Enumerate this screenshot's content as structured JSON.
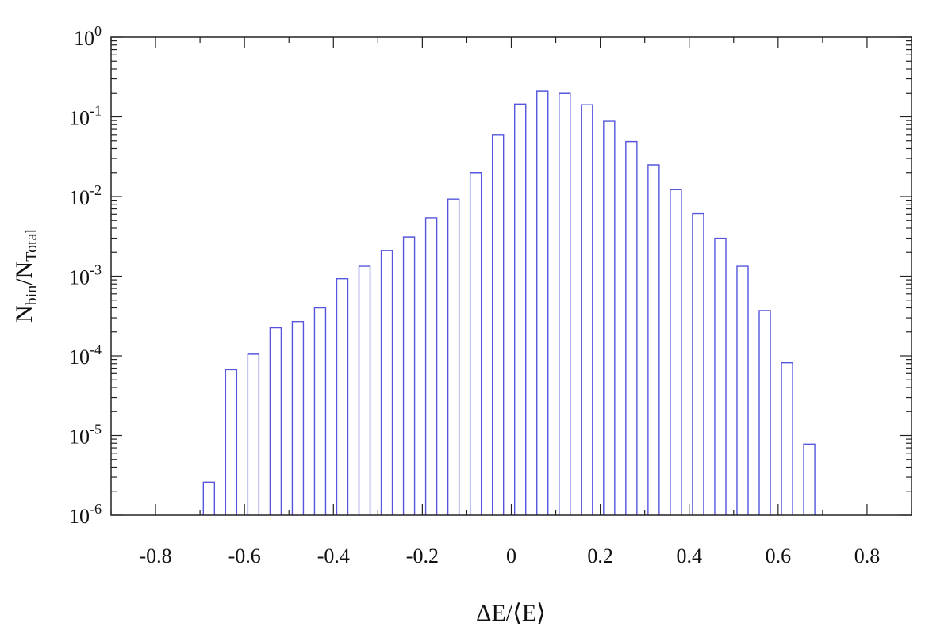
{
  "chart_data": {
    "type": "bar",
    "xlabel": "ΔE/⟨E⟩",
    "ylabel": "N_bin/N_Total",
    "ylabel_parts": {
      "n1": "N",
      "sub1": "bin",
      "sep": "/",
      "n2": "N",
      "sub2": "Total"
    },
    "xlim": [
      -0.9,
      0.9
    ],
    "ylim": [
      1e-06,
      1
    ],
    "yscale": "log",
    "x_ticks": [
      -0.8,
      -0.6,
      -0.4,
      -0.2,
      0,
      0.2,
      0.4,
      0.6,
      0.8
    ],
    "x_tick_labels": [
      "-0.8",
      "-0.6",
      "-0.4",
      "-0.2",
      "0",
      "0.2",
      "0.4",
      "0.6",
      "0.8"
    ],
    "y_tick_labels": [
      {
        "base": "10",
        "exp": "0"
      },
      {
        "base": "10",
        "exp": "-1"
      },
      {
        "base": "10",
        "exp": "-2"
      },
      {
        "base": "10",
        "exp": "-3"
      },
      {
        "base": "10",
        "exp": "-4"
      },
      {
        "base": "10",
        "exp": "-5"
      },
      {
        "base": "10",
        "exp": "-6"
      }
    ],
    "bar_width": 0.025,
    "series": [
      {
        "color": "#5555dd",
        "x": [
          -0.68,
          -0.63,
          -0.58,
          -0.53,
          -0.48,
          -0.43,
          -0.38,
          -0.33,
          -0.28,
          -0.23,
          -0.18,
          -0.13,
          -0.08,
          -0.03,
          0.02,
          0.07,
          0.12,
          0.17,
          0.22,
          0.27,
          0.32,
          0.37,
          0.42,
          0.47,
          0.52,
          0.57,
          0.62,
          0.67
        ],
        "values": [
          2.6e-06,
          6.7e-05,
          0.000105,
          0.000225,
          0.00027,
          0.0004,
          0.00093,
          0.00133,
          0.0021,
          0.0031,
          0.0054,
          0.0093,
          0.02,
          0.06,
          0.145,
          0.21,
          0.2,
          0.142,
          0.088,
          0.049,
          0.025,
          0.0122,
          0.0061,
          0.003,
          0.00133,
          0.00037,
          8.2e-05,
          7.8e-06
        ]
      }
    ],
    "grid": false,
    "legend": "none"
  }
}
